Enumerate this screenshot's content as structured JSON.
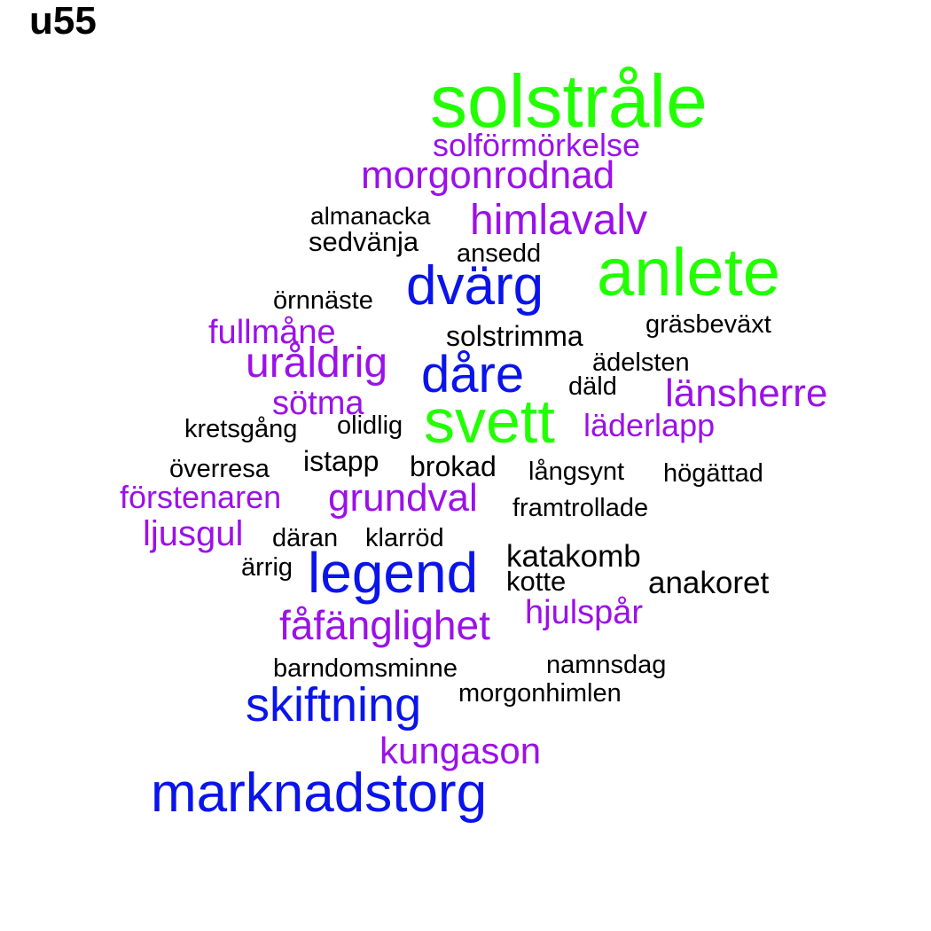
{
  "title": "u55",
  "colors": {
    "green": "#22ff00",
    "purple": "#9b11e8",
    "blue": "#0a14ea",
    "black": "#000000"
  },
  "words": [
    {
      "text": "solstråle",
      "color": "green",
      "weight": 9
    },
    {
      "text": "anlete",
      "color": "green",
      "weight": 8
    },
    {
      "text": "svett",
      "color": "green",
      "weight": 7
    },
    {
      "text": "solförmörkelse",
      "color": "purple",
      "weight": 3
    },
    {
      "text": "morgonrodnad",
      "color": "purple",
      "weight": 4
    },
    {
      "text": "himlavalv",
      "color": "purple",
      "weight": 4
    },
    {
      "text": "fullmåne",
      "color": "purple",
      "weight": 3
    },
    {
      "text": "uråldrig",
      "color": "purple",
      "weight": 4
    },
    {
      "text": "sötma",
      "color": "purple",
      "weight": 3
    },
    {
      "text": "länsherre",
      "color": "purple",
      "weight": 4
    },
    {
      "text": "läderlapp",
      "color": "purple",
      "weight": 3
    },
    {
      "text": "förstenaren",
      "color": "purple",
      "weight": 3
    },
    {
      "text": "grundval",
      "color": "purple",
      "weight": 4
    },
    {
      "text": "ljusgul",
      "color": "purple",
      "weight": 3
    },
    {
      "text": "fåfänglighet",
      "color": "purple",
      "weight": 4
    },
    {
      "text": "hjulspår",
      "color": "purple",
      "weight": 3
    },
    {
      "text": "kungason",
      "color": "purple",
      "weight": 4
    },
    {
      "text": "dvärg",
      "color": "blue",
      "weight": 6
    },
    {
      "text": "dåre",
      "color": "blue",
      "weight": 6
    },
    {
      "text": "legend",
      "color": "blue",
      "weight": 7
    },
    {
      "text": "skiftning",
      "color": "blue",
      "weight": 6
    },
    {
      "text": "marknadstorg",
      "color": "blue",
      "weight": 7
    },
    {
      "text": "almanacka",
      "color": "black",
      "weight": 2
    },
    {
      "text": "sedvänja",
      "color": "black",
      "weight": 2
    },
    {
      "text": "ansedd",
      "color": "black",
      "weight": 2
    },
    {
      "text": "örnnäste",
      "color": "black",
      "weight": 2
    },
    {
      "text": "gräsbeväxt",
      "color": "black",
      "weight": 2
    },
    {
      "text": "solstrimma",
      "color": "black",
      "weight": 2
    },
    {
      "text": "ädelsten",
      "color": "black",
      "weight": 2
    },
    {
      "text": "däld",
      "color": "black",
      "weight": 2
    },
    {
      "text": "kretsgång",
      "color": "black",
      "weight": 2
    },
    {
      "text": "olidlig",
      "color": "black",
      "weight": 2
    },
    {
      "text": "överresa",
      "color": "black",
      "weight": 2
    },
    {
      "text": "istapp",
      "color": "black",
      "weight": 2
    },
    {
      "text": "brokad",
      "color": "black",
      "weight": 2
    },
    {
      "text": "långsynt",
      "color": "black",
      "weight": 2
    },
    {
      "text": "högättad",
      "color": "black",
      "weight": 2
    },
    {
      "text": "framtrollade",
      "color": "black",
      "weight": 2
    },
    {
      "text": "däran",
      "color": "black",
      "weight": 2
    },
    {
      "text": "klarröd",
      "color": "black",
      "weight": 2
    },
    {
      "text": "ärrig",
      "color": "black",
      "weight": 2
    },
    {
      "text": "katakomb",
      "color": "black",
      "weight": 3
    },
    {
      "text": "kotte",
      "color": "black",
      "weight": 2
    },
    {
      "text": "anakoret",
      "color": "black",
      "weight": 3
    },
    {
      "text": "barndomsminne",
      "color": "black",
      "weight": 2
    },
    {
      "text": "namnsdag",
      "color": "black",
      "weight": 2
    },
    {
      "text": "morgonhimlen",
      "color": "black",
      "weight": 2
    }
  ]
}
